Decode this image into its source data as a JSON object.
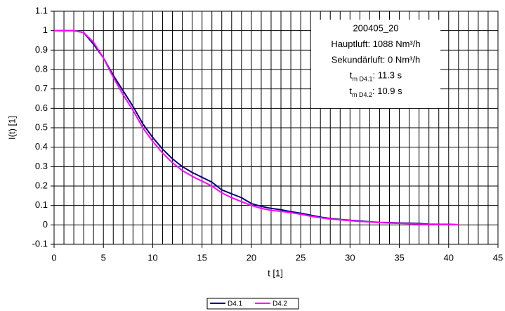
{
  "chart_data": {
    "type": "line",
    "x_label": "t [1]",
    "y_label": "I(t) [1]",
    "x": [
      0,
      1,
      2,
      3,
      4,
      5,
      6,
      7,
      8,
      9,
      10,
      11,
      12,
      13,
      14,
      15,
      16,
      17,
      18,
      19,
      20,
      21,
      22,
      23,
      24,
      25,
      26,
      27,
      28,
      29,
      30,
      31,
      32,
      33,
      34,
      35,
      36,
      37,
      38,
      39,
      40,
      41
    ],
    "series": [
      {
        "name": "D4.1",
        "color": "#000080",
        "values": [
          1,
          1,
          1,
          0.99,
          0.93,
          0.86,
          0.77,
          0.69,
          0.61,
          0.52,
          0.45,
          0.39,
          0.34,
          0.3,
          0.27,
          0.245,
          0.22,
          0.18,
          0.16,
          0.14,
          0.11,
          0.095,
          0.085,
          0.078,
          0.068,
          0.06,
          0.05,
          0.04,
          0.033,
          0.028,
          0.024,
          0.02,
          0.016,
          0.013,
          0.012,
          0.01,
          0.009,
          0.007,
          0.004,
          0.003,
          0.003,
          0.001
        ]
      },
      {
        "name": "D4.2",
        "color": "#ff00ff",
        "values": [
          1,
          1,
          1,
          0.99,
          0.94,
          0.86,
          0.76,
          0.67,
          0.59,
          0.5,
          0.43,
          0.37,
          0.32,
          0.28,
          0.25,
          0.225,
          0.2,
          0.165,
          0.14,
          0.12,
          0.1,
          0.085,
          0.075,
          0.07,
          0.063,
          0.055,
          0.045,
          0.037,
          0.03,
          0.026,
          0.022,
          0.018,
          0.015,
          0.012,
          0.01,
          0.008,
          0.006,
          0.004,
          0.003,
          0.002,
          0.002,
          0.001
        ]
      }
    ],
    "xlim": [
      0,
      45
    ],
    "xticks": [
      0,
      5,
      10,
      15,
      20,
      25,
      30,
      35,
      40,
      45
    ],
    "xminorticks": [
      1,
      2,
      3,
      4,
      6,
      7,
      8,
      9,
      11,
      12,
      13,
      14,
      16,
      17,
      18,
      19,
      21,
      22,
      23,
      24,
      26,
      27,
      28,
      29,
      31,
      32,
      33,
      34,
      36,
      37,
      38,
      39,
      41,
      42,
      43,
      44
    ],
    "ylim": [
      -0.1,
      1.1
    ],
    "yticks": [
      -0.1,
      0,
      0.1,
      0.2,
      0.3,
      0.4,
      0.5,
      0.6,
      0.7,
      0.8,
      0.9,
      1,
      1.1
    ],
    "grid": true,
    "legend": "bottom",
    "annotation": {
      "lines": [
        "200405_20",
        "Hauptluft: 1088 Nm³/h",
        "Sekundärluft: 0 Nm³/h"
      ],
      "sub_lines": [
        {
          "main": "t",
          "sub": "m D4.1",
          "rest": ": 11.3 s"
        },
        {
          "main": "t",
          "sub": "m D4.2",
          "rest": ": 10.9 s"
        }
      ]
    }
  }
}
